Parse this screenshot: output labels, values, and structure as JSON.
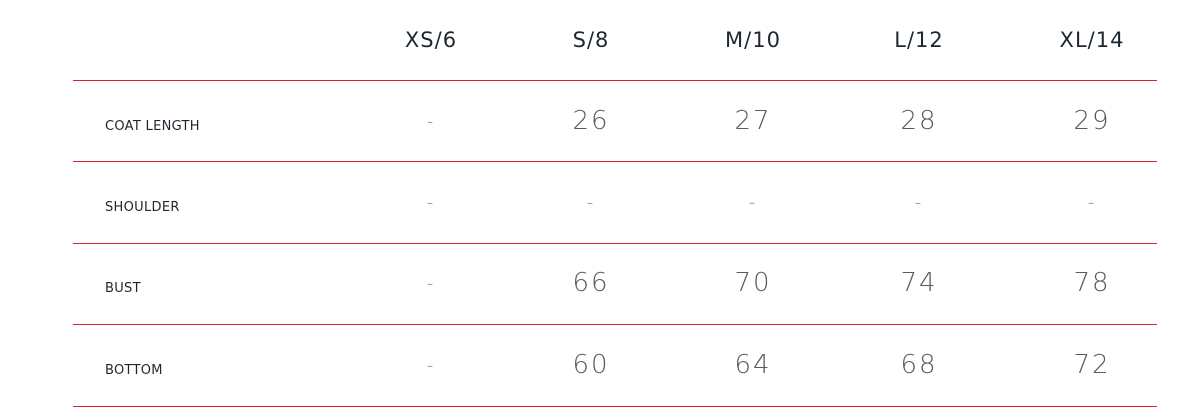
{
  "accent_color": "#d8232a",
  "columns": [
    "XS/6",
    "S/8",
    "M/10",
    "L/12",
    "XL/14"
  ],
  "rows": [
    {
      "label": "COAT LENGTH",
      "values": [
        "-",
        "26",
        "27",
        "28",
        "29"
      ]
    },
    {
      "label": "SHOULDER",
      "values": [
        "-",
        "-",
        "-",
        "-",
        "-"
      ]
    },
    {
      "label": "BUST",
      "values": [
        "-",
        "66",
        "70",
        "74",
        "78"
      ]
    },
    {
      "label": "BOTTOM",
      "values": [
        "-",
        "60",
        "64",
        "68",
        "72"
      ]
    }
  ]
}
